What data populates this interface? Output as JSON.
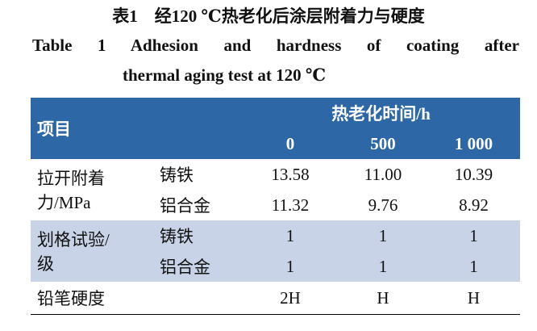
{
  "caption": {
    "cn": "表1　经120 ℃热老化后涂层附着力与硬度",
    "en_line1": "Table 1   Adhesion and hardness of coating after",
    "en_line2": "thermal aging test at 120 ℃"
  },
  "table": {
    "header": {
      "item": "项目",
      "time": "热老化时间/h",
      "hours": [
        "0",
        "500",
        "1 000"
      ]
    },
    "groups": [
      {
        "label": [
          "拉开附着",
          "力/MPa"
        ],
        "rows": [
          [
            "铸铁",
            "13.58",
            "11.00",
            "10.39"
          ],
          [
            "铝合金",
            "11.32",
            "9.76",
            "8.92"
          ]
        ]
      },
      {
        "label": [
          "划格试验/",
          "级"
        ],
        "rows": [
          [
            "铸铁",
            "1",
            "1",
            "1"
          ],
          [
            "铝合金",
            "1",
            "1",
            "1"
          ]
        ]
      },
      {
        "label": [
          "铅笔硬度"
        ],
        "rows": [
          [
            "",
            "2H",
            "H",
            "H"
          ]
        ]
      }
    ]
  }
}
